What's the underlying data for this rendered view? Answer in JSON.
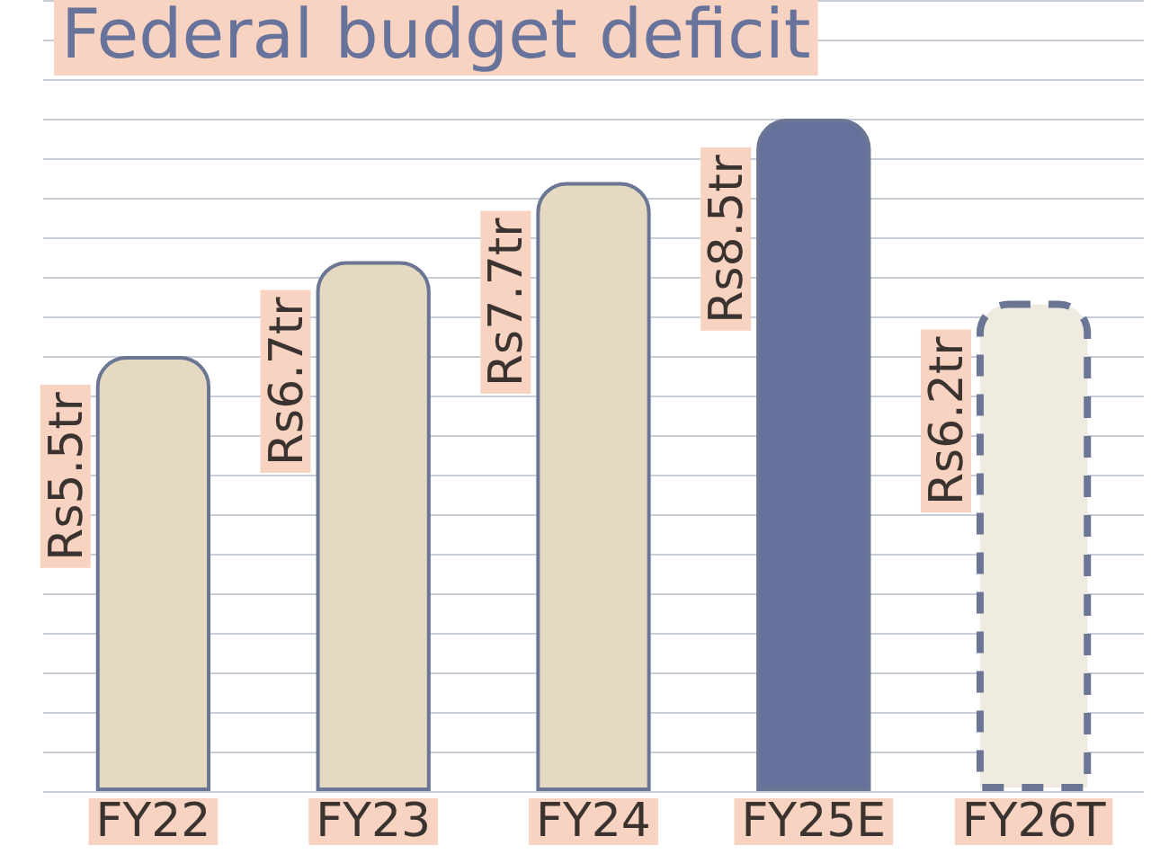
{
  "chart_data": {
    "type": "bar",
    "title": "Federal budget deficit",
    "categories": [
      "FY22",
      "FY23",
      "FY24",
      "FY25E",
      "FY26T"
    ],
    "series": [
      {
        "color": "#e5dac1",
        "values": [
          5.5,
          6.7,
          7.7,
          null,
          null
        ],
        "value_labels": [
          "Rs5.5tr",
          "Rs6.7tr",
          "Rs7.7tr",
          null,
          null
        ]
      },
      {
        "color": "#63719b",
        "values": [
          null,
          null,
          null,
          8.5,
          null
        ],
        "value_labels": [
          null,
          null,
          null,
          "Rs8.5tr",
          null
        ]
      },
      {
        "color": "#efebe1",
        "line_style": "dashed",
        "values": [
          null,
          null,
          null,
          null,
          6.2
        ],
        "value_labels": [
          null,
          null,
          null,
          null,
          "Rs6.2tr"
        ]
      }
    ],
    "grid": "y"
  }
}
